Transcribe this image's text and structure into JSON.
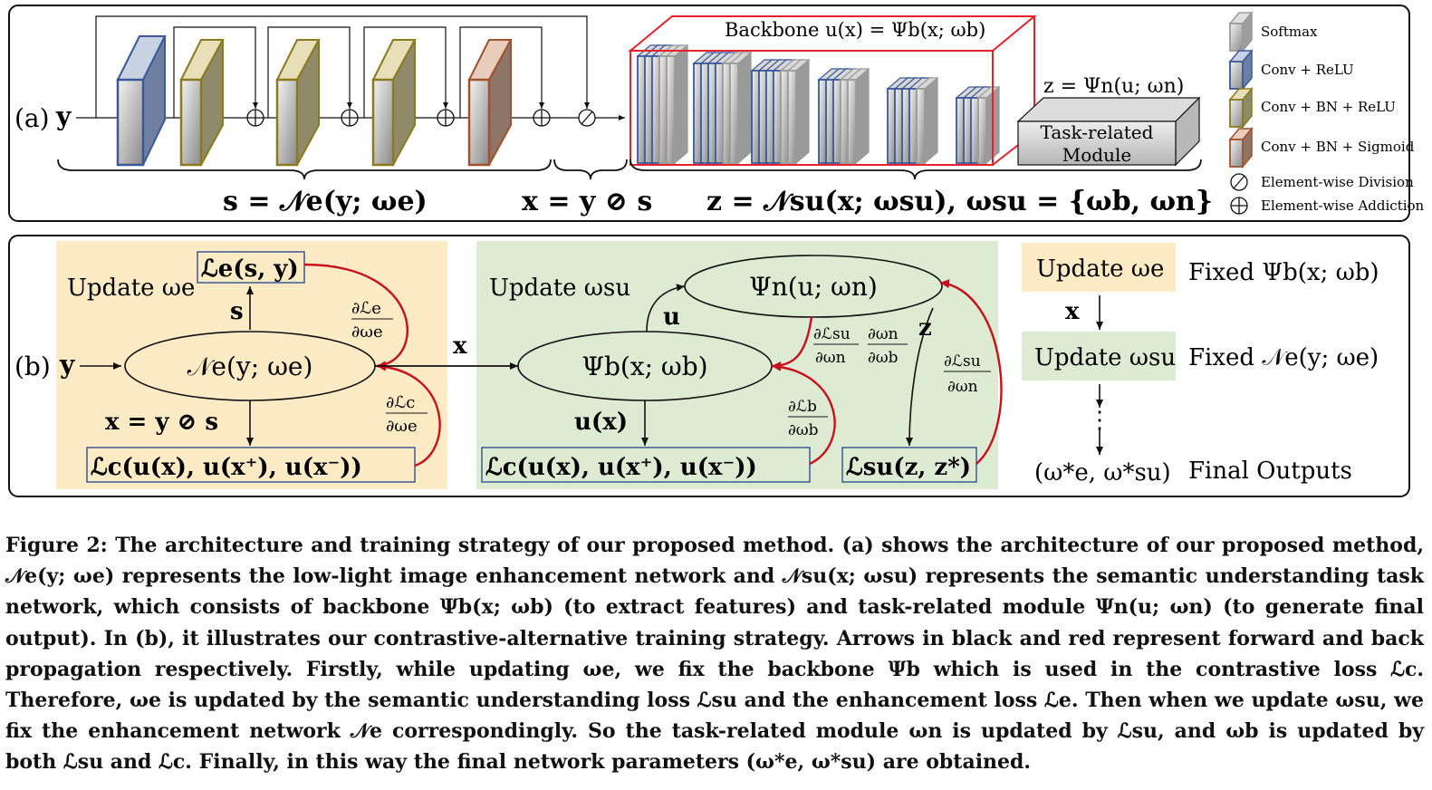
{
  "panel_a": {
    "label": "(a)",
    "input": "y",
    "backbone_label": "Backbone u(x) = Ψb(x; ωb)",
    "z_label": "z = Ψn(u; ωn)",
    "task_module_line1": "Task-related",
    "task_module_line2": "Module",
    "s_eq": "s = 𝒩e(y; ωe)",
    "x_eq": "x = y ⊘ s",
    "z_eq": "z = 𝒩su(x; ωsu), ωsu = {ωb, ωn}",
    "legend": [
      "Softmax",
      "Conv + ReLU",
      "Conv + BN + ReLU",
      "Conv + BN + Sigmoid",
      "Element-wise Division",
      "Element-wise Addiction"
    ],
    "colors": {
      "conv_relu": "#3b5998",
      "conv_bn_relu": "#8b7a1e",
      "conv_bn_sigmoid": "#a0522d",
      "softmax": "#9a9a9a",
      "backbone_box": "#e8202a"
    }
  },
  "panel_b": {
    "label": "(b)",
    "input": "y",
    "update_e": "Update ωe",
    "loss_e": "ℒe(s, y)",
    "s": "s",
    "grad_e_num": "∂ℒe",
    "grad_e_den": "∂ωe",
    "ne_node": "𝒩e(y; ωe)",
    "x_eq": "x = y ⊘ s",
    "grad_c_num": "∂ℒc",
    "grad_c_den": "∂ωe",
    "loss_c_left": "ℒc(u(x), u(x⁺), u(x⁻))",
    "x_arrow": "x",
    "update_su": "Update ωsu",
    "psi_n_node": "Ψn(u; ωn)",
    "u": "u",
    "psi_b_node": "Ψb(x; ωb)",
    "grad_su_n_num": "∂ℒsu",
    "grad_su_n_den": "∂ωn",
    "grad_nb_num": "∂ωn",
    "grad_nb_den": "∂ωb",
    "z": "z",
    "grad_su2_num": "∂ℒsu",
    "grad_su2_den": "∂ωn",
    "grad_b_num": "∂ℒb",
    "grad_b_den": "∂ωb",
    "ux": "u(x)",
    "loss_c_mid": "ℒc(u(x), u(x⁺), u(x⁻))",
    "loss_su": "ℒsu(z, z*)",
    "flow_update_e": "Update ωe",
    "flow_fixed_b": "Fixed Ψb(x; ωb)",
    "flow_x": "x",
    "flow_update_su": "Update ωsu",
    "flow_fixed_e": "Fixed 𝒩e(y; ωe)",
    "flow_dots": "⋮",
    "flow_final_vars": "(ω*e, ω*su)",
    "flow_final_label": "Final Outputs",
    "colors": {
      "left_panel": "#fdebc6",
      "mid_panel": "#dcebd2",
      "flow_e": "#fdebc6",
      "flow_su": "#dcebd2",
      "backprop": "#c8101c",
      "loss_border": "#2f4f8f"
    }
  },
  "caption": {
    "text": "Figure 2: The architecture and training strategy of our proposed method. (a) shows the architecture of our proposed method, 𝒩e(y; ωe) represents the low-light image enhancement network and 𝒩su(x; ωsu) represents the semantic understanding task network, which consists of backbone Ψb(x; ωb) (to extract features) and task-related module Ψn(u; ωn) (to generate final output). In (b), it illustrates our contrastive-alternative training strategy. Arrows in black and red represent forward and back propagation respectively. Firstly, while updating ωe, we fix the backbone Ψb which is used in the contrastive loss ℒc. Therefore, ωe is updated by the semantic understanding loss ℒsu and the enhancement loss ℒe. Then when we update ωsu, we fix the enhancement network 𝒩e correspondingly. So the task-related module ωn is updated by ℒsu, and ωb is updated by both ℒsu and ℒc. Finally, in this way the final network parameters (ω*e, ω*su) are obtained."
  }
}
